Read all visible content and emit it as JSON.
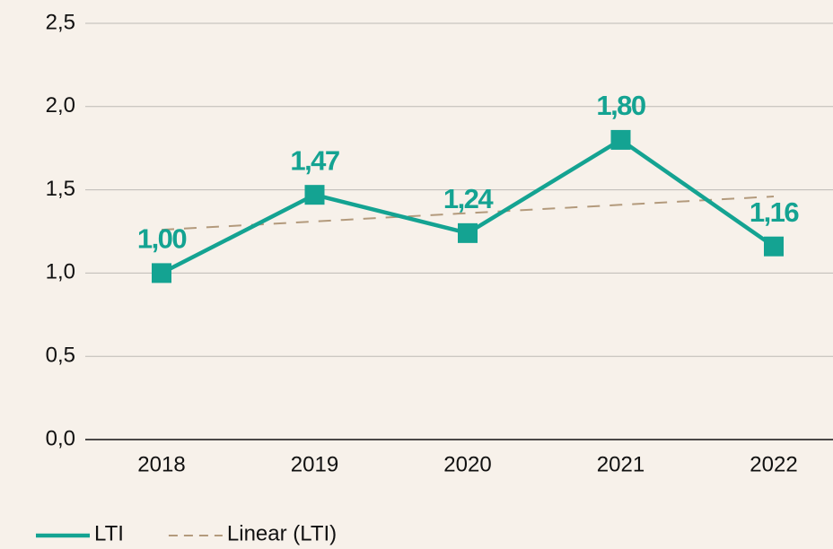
{
  "chart_data": {
    "type": "line",
    "categories": [
      "2018",
      "2019",
      "2020",
      "2021",
      "2022"
    ],
    "series": [
      {
        "name": "LTI",
        "color": "#14a392",
        "values": [
          1.0,
          1.47,
          1.24,
          1.8,
          1.16
        ],
        "value_labels": [
          "1,00",
          "1,47",
          "1,24",
          "1,80",
          "1,16"
        ]
      },
      {
        "name": "Linear (LTI)",
        "color": "#b39a7c",
        "values": [
          1.26,
          1.31,
          1.36,
          1.41,
          1.46
        ],
        "dashed": true
      }
    ],
    "ylim": [
      0,
      2.5
    ],
    "yticks": [
      {
        "value": 0,
        "label": "0,0"
      },
      {
        "value": 0.5,
        "label": "0,5"
      },
      {
        "value": 1.0,
        "label": "1,0"
      },
      {
        "value": 1.5,
        "label": "1,5"
      },
      {
        "value": 2.0,
        "label": "2,0"
      },
      {
        "value": 2.5,
        "label": "2,5"
      }
    ],
    "grid": true,
    "legend": "bottom-left"
  }
}
